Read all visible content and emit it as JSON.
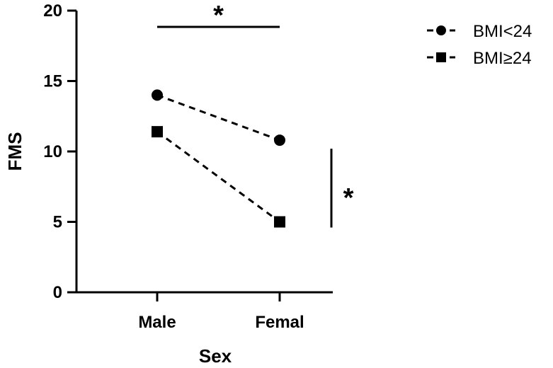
{
  "chart_data": {
    "type": "line",
    "categories": [
      "Male",
      "Femal"
    ],
    "xlabel": "Sex",
    "ylabel": "FMS",
    "ylim": [
      0,
      20
    ],
    "yticks": [
      0,
      5,
      10,
      15,
      20
    ],
    "legend_position": "top-right",
    "series": [
      {
        "name": "BMI<24",
        "marker": "circle",
        "values": [
          14.0,
          10.8
        ]
      },
      {
        "name": "BMI≥24",
        "marker": "square",
        "values": [
          11.4,
          5.0
        ]
      }
    ],
    "annotations": [
      {
        "text": "*",
        "type": "bracket-horizontal",
        "between": [
          "Male",
          "Femal"
        ]
      },
      {
        "text": "*",
        "type": "bracket-vertical",
        "at": "Femal"
      }
    ]
  }
}
